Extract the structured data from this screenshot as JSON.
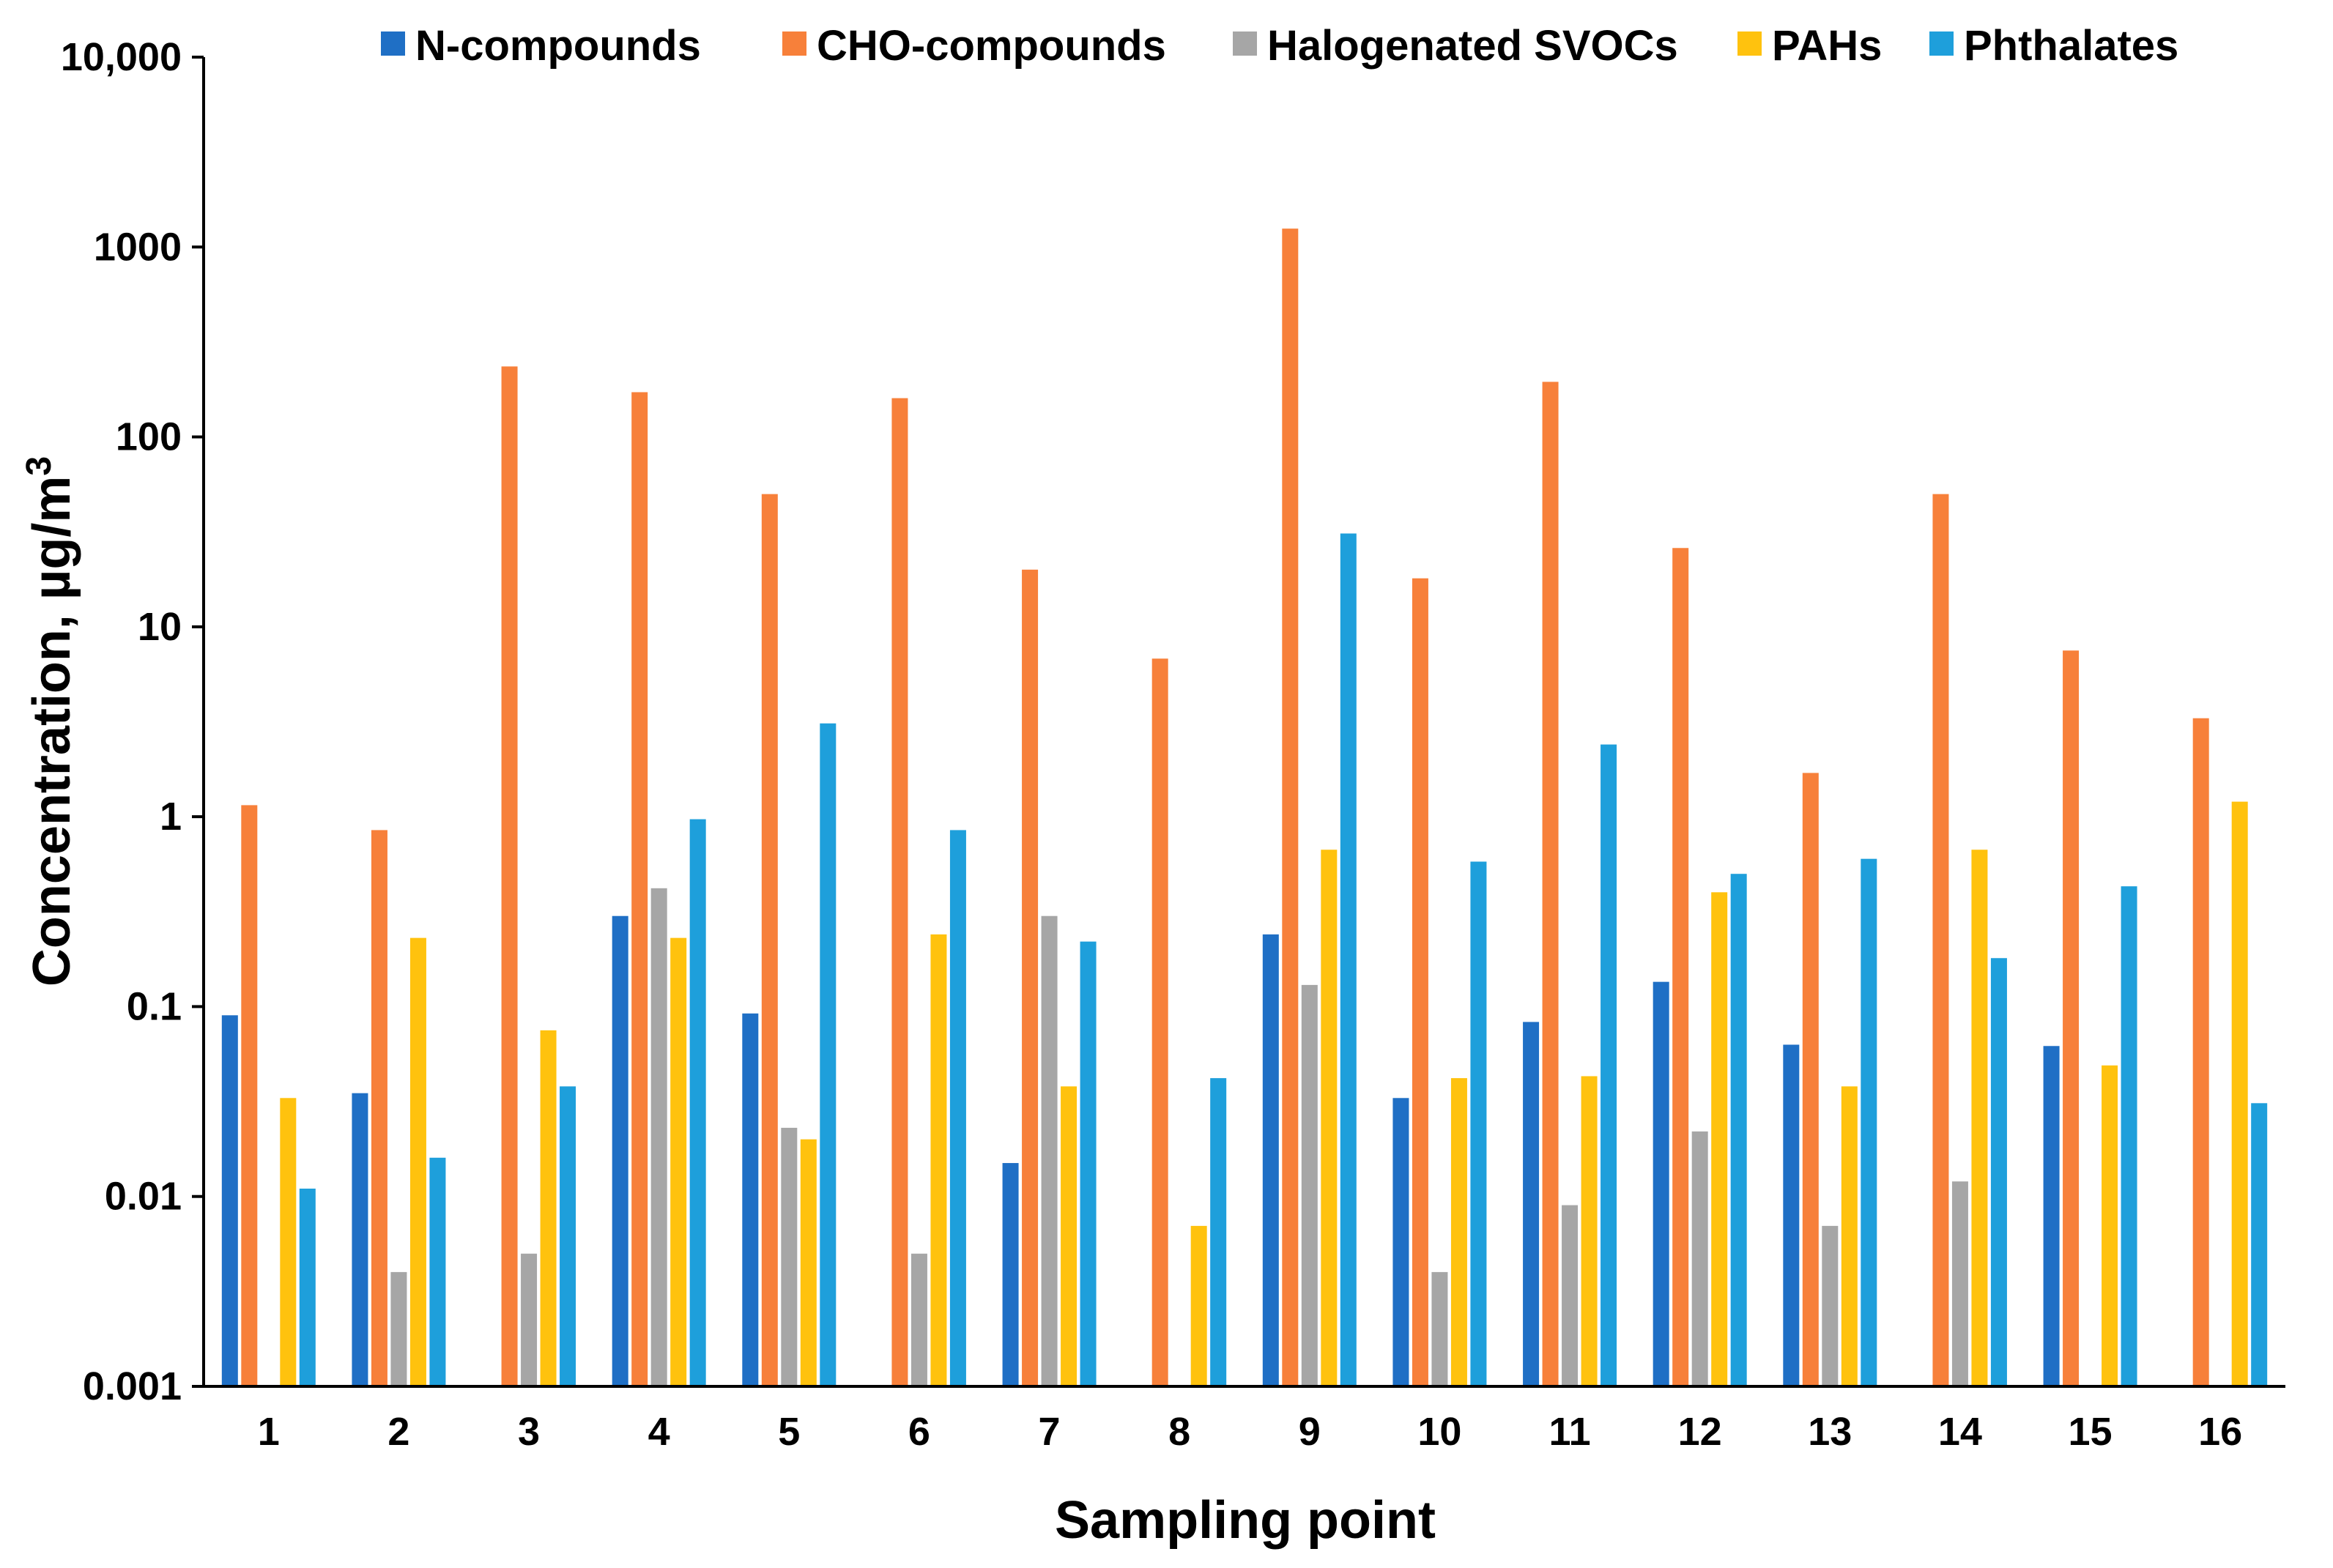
{
  "chart_data": {
    "type": "bar",
    "title": "",
    "xlabel": "Sampling point",
    "ylabel": "Concentration, µg/m",
    "ylabel_superscript": "3",
    "yscale": "log",
    "ylim": [
      0.001,
      10000
    ],
    "yticks": [
      "0.001",
      "0.01",
      "0.1",
      "1",
      "10",
      "100",
      "1000",
      "10,000"
    ],
    "grid": false,
    "legend_position": "top",
    "categories": [
      "1",
      "2",
      "3",
      "4",
      "5",
      "6",
      "7",
      "8",
      "9",
      "10",
      "11",
      "12",
      "13",
      "14",
      "15",
      "16"
    ],
    "series": [
      {
        "name": "N-compounds",
        "color": "#1F6FC5",
        "values": [
          0.09,
          0.035,
          null,
          0.3,
          0.092,
          null,
          0.015,
          null,
          0.24,
          0.033,
          0.083,
          0.135,
          0.063,
          null,
          0.062,
          null
        ]
      },
      {
        "name": "CHO-compounds",
        "color": "#F7803A",
        "values": [
          1.15,
          0.85,
          235,
          172,
          50,
          160,
          20,
          6.8,
          1250,
          18,
          195,
          26,
          1.7,
          50,
          7.5,
          3.3
        ]
      },
      {
        "name": "Halogenated SVOCs",
        "color": "#A6A6A6",
        "values": [
          null,
          0.004,
          0.005,
          0.42,
          0.023,
          0.005,
          0.3,
          null,
          0.13,
          0.004,
          0.009,
          0.022,
          0.007,
          0.012,
          null,
          null
        ]
      },
      {
        "name": "PAHs",
        "color": "#FFC20E",
        "values": [
          0.033,
          0.23,
          0.075,
          0.23,
          0.02,
          0.24,
          0.038,
          0.007,
          0.67,
          0.042,
          0.043,
          0.4,
          0.038,
          0.67,
          0.049,
          1.2
        ]
      },
      {
        "name": "Phthalates",
        "color": "#1E9FDB",
        "values": [
          0.011,
          0.016,
          0.038,
          0.97,
          3.1,
          0.85,
          0.22,
          0.042,
          31,
          0.58,
          2.4,
          0.5,
          0.6,
          0.18,
          0.43,
          0.031
        ]
      }
    ]
  }
}
